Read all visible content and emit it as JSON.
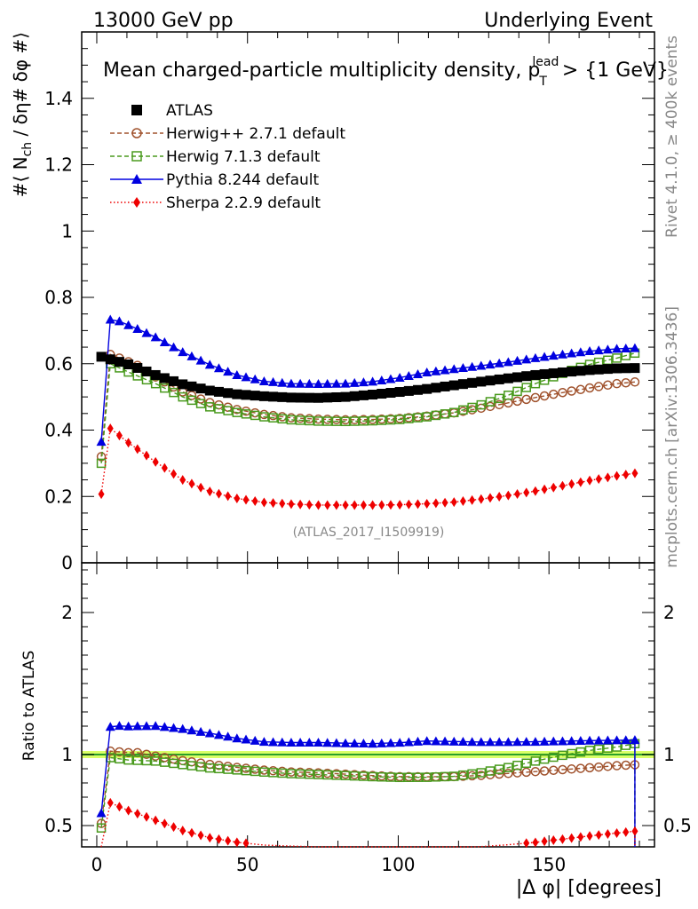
{
  "header": {
    "left": "13000 GeV pp",
    "right": "Underlying Event"
  },
  "side_labels": {
    "rivet": "Rivet 4.1.0, ≥ 400k events",
    "mcplots": "mcplots.cern.ch [arXiv:1306.3436]"
  },
  "colors": {
    "atlas": "#000000",
    "herwigpp": "#a0522d",
    "herwig7": "#4a9a1e",
    "pythia": "#0000e0",
    "sherpa": "#ee0000",
    "band": "#ccff33"
  },
  "chart_data": {
    "type": "line",
    "title": "Mean charged-particle multiplicity density, p",
    "title_sup": "lead",
    "title_sub": "T",
    "title_tail": " > {1 GeV}",
    "watermark": "(ATLAS_2017_I1509919)",
    "ylabel_parts": [
      "#⟨ N",
      "ch",
      " / δη# δφ #⟩"
    ],
    "xlabel": "|Δ φ| [degrees]",
    "ratio_ylabel": "Ratio to ATLAS",
    "xlim": [
      -5,
      185
    ],
    "ylim": [
      0,
      1.6
    ],
    "ratio_ylim": [
      0.35,
      2.35
    ],
    "xticks": [
      0,
      50,
      100,
      150
    ],
    "yticks": [
      0,
      0.2,
      0.4,
      0.6,
      0.8,
      1,
      1.2,
      1.4
    ],
    "ytick_labels": [
      "0",
      "0.2",
      "0.4",
      "0.6",
      "0.8",
      "1",
      "1.2",
      "1.4"
    ],
    "ratio_yticks": [
      0.5,
      1,
      2
    ],
    "ratio_ytick_labels": [
      "0.5",
      "1",
      "2"
    ],
    "n_points": 60,
    "x_start": 1.5,
    "x_step": 3,
    "series": [
      {
        "name": "ATLAS",
        "key": "atlas",
        "marker": "square-filled",
        "line": "none",
        "shape": [
          [
            1.5,
            0.621
          ],
          [
            10.5,
            0.598
          ],
          [
            19.5,
            0.566
          ],
          [
            28.5,
            0.538
          ],
          [
            37.5,
            0.519
          ],
          [
            46.5,
            0.508
          ],
          [
            55.5,
            0.502
          ],
          [
            64.5,
            0.498
          ],
          [
            73.5,
            0.497
          ],
          [
            82.5,
            0.5
          ],
          [
            91.5,
            0.507
          ],
          [
            100.5,
            0.515
          ],
          [
            109.5,
            0.524
          ],
          [
            118.5,
            0.535
          ],
          [
            127.5,
            0.546
          ],
          [
            136.5,
            0.556
          ],
          [
            145.5,
            0.566
          ],
          [
            154.5,
            0.574
          ],
          [
            163.5,
            0.581
          ],
          [
            172.5,
            0.586
          ],
          [
            178.5,
            0.587
          ]
        ]
      },
      {
        "name": "Herwig++ 2.7.1 default",
        "key": "herwigpp",
        "marker": "circle-open",
        "line": "dashed",
        "shape": [
          [
            1.5,
            0.32
          ],
          [
            4.5,
            0.628
          ],
          [
            7.5,
            0.617
          ],
          [
            13.5,
            0.595
          ],
          [
            19.5,
            0.56
          ],
          [
            28.5,
            0.515
          ],
          [
            37.5,
            0.483
          ],
          [
            46.5,
            0.462
          ],
          [
            55.5,
            0.447
          ],
          [
            64.5,
            0.437
          ],
          [
            73.5,
            0.433
          ],
          [
            82.5,
            0.431
          ],
          [
            91.5,
            0.432
          ],
          [
            100.5,
            0.435
          ],
          [
            109.5,
            0.442
          ],
          [
            118.5,
            0.452
          ],
          [
            127.5,
            0.466
          ],
          [
            136.5,
            0.482
          ],
          [
            145.5,
            0.498
          ],
          [
            154.5,
            0.513
          ],
          [
            163.5,
            0.527
          ],
          [
            172.5,
            0.54
          ],
          [
            178.5,
            0.545
          ]
        ]
      },
      {
        "name": "Herwig 7.1.3 default",
        "key": "herwig7",
        "marker": "square-open",
        "line": "dashed",
        "shape": [
          [
            1.5,
            0.3
          ],
          [
            4.5,
            0.6
          ],
          [
            10.5,
            0.575
          ],
          [
            19.5,
            0.54
          ],
          [
            28.5,
            0.5
          ],
          [
            37.5,
            0.47
          ],
          [
            46.5,
            0.453
          ],
          [
            55.5,
            0.44
          ],
          [
            64.5,
            0.431
          ],
          [
            73.5,
            0.427
          ],
          [
            82.5,
            0.426
          ],
          [
            91.5,
            0.428
          ],
          [
            100.5,
            0.432
          ],
          [
            109.5,
            0.44
          ],
          [
            118.5,
            0.453
          ],
          [
            127.5,
            0.476
          ],
          [
            136.5,
            0.505
          ],
          [
            145.5,
            0.54
          ],
          [
            154.5,
            0.571
          ],
          [
            163.5,
            0.598
          ],
          [
            172.5,
            0.617
          ],
          [
            178.5,
            0.632
          ]
        ]
      },
      {
        "name": "Pythia 8.244 default",
        "key": "pythia",
        "marker": "triangle-filled",
        "line": "solid",
        "shape": [
          [
            1.5,
            0.365
          ],
          [
            4.5,
            0.733
          ],
          [
            7.5,
            0.728
          ],
          [
            13.5,
            0.705
          ],
          [
            19.5,
            0.68
          ],
          [
            28.5,
            0.635
          ],
          [
            37.5,
            0.597
          ],
          [
            46.5,
            0.566
          ],
          [
            55.5,
            0.547
          ],
          [
            64.5,
            0.54
          ],
          [
            73.5,
            0.539
          ],
          [
            82.5,
            0.54
          ],
          [
            91.5,
            0.546
          ],
          [
            100.5,
            0.558
          ],
          [
            109.5,
            0.574
          ],
          [
            118.5,
            0.584
          ],
          [
            127.5,
            0.594
          ],
          [
            136.5,
            0.605
          ],
          [
            145.5,
            0.617
          ],
          [
            154.5,
            0.628
          ],
          [
            163.5,
            0.638
          ],
          [
            172.5,
            0.645
          ],
          [
            178.5,
            0.647
          ]
        ]
      },
      {
        "name": "Sherpa 2.2.9 default",
        "key": "sherpa",
        "marker": "diamond-filled",
        "line": "dotted",
        "shape": [
          [
            1.5,
            0.207
          ],
          [
            4.5,
            0.405
          ],
          [
            10.5,
            0.362
          ],
          [
            19.5,
            0.304
          ],
          [
            28.5,
            0.25
          ],
          [
            37.5,
            0.215
          ],
          [
            46.5,
            0.194
          ],
          [
            55.5,
            0.182
          ],
          [
            64.5,
            0.177
          ],
          [
            73.5,
            0.174
          ],
          [
            82.5,
            0.174
          ],
          [
            91.5,
            0.174
          ],
          [
            100.5,
            0.175
          ],
          [
            109.5,
            0.178
          ],
          [
            118.5,
            0.183
          ],
          [
            127.5,
            0.192
          ],
          [
            136.5,
            0.203
          ],
          [
            145.5,
            0.216
          ],
          [
            154.5,
            0.232
          ],
          [
            163.5,
            0.248
          ],
          [
            172.5,
            0.262
          ],
          [
            178.5,
            0.27
          ]
        ]
      }
    ]
  }
}
